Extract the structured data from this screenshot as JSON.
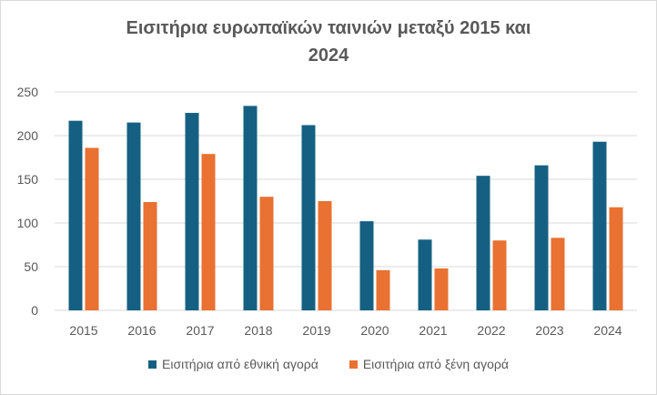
{
  "chart_data": {
    "type": "bar",
    "title_line1": "Εισιτήρια ευρωπαϊκών ταινιών μεταξύ 2015 και",
    "title_line2": "2024",
    "categories": [
      "2015",
      "2016",
      "2017",
      "2018",
      "2019",
      "2020",
      "2021",
      "2022",
      "2023",
      "2024"
    ],
    "series": [
      {
        "name": "Εισιτήρια από εθνική αγορά",
        "color": "#156082",
        "values": [
          217,
          215,
          226,
          234,
          212,
          102,
          81,
          154,
          166,
          193
        ]
      },
      {
        "name": "Εισιτήρια από ξένη αγορά",
        "color": "#e97132",
        "values": [
          186,
          124,
          179,
          130,
          125,
          46,
          48,
          80,
          83,
          118
        ]
      }
    ],
    "yticks": [
      "0",
      "50",
      "100",
      "150",
      "200",
      "250"
    ],
    "ylim": [
      0,
      250
    ],
    "grid": true,
    "legend": "bottom"
  }
}
